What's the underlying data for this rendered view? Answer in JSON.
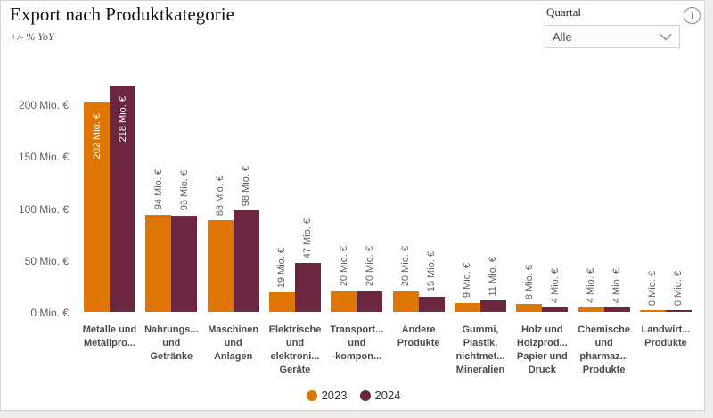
{
  "header": {
    "title": "Export nach Produktkategorie",
    "subtitle": "+/- % YoY"
  },
  "slicer": {
    "label": "Quartal",
    "value": "Alle"
  },
  "icons": {
    "info": "i",
    "chevron_down": "chevron-down-icon"
  },
  "colors": {
    "series_2023": "#de7605",
    "series_2024": "#6c2642",
    "axis_text": "#605e5c",
    "category_text": "#4a4a4a",
    "inside_label": "#ffffff"
  },
  "legend": {
    "items": [
      {
        "label": "2023"
      },
      {
        "label": "2024"
      }
    ]
  },
  "chart_data": {
    "type": "bar",
    "title": "Export nach Produktkategorie",
    "subtitle": "+/- % YoY",
    "categories": [
      [
        "Metalle und",
        "Metallpro..."
      ],
      [
        "Nahrungs...",
        "und",
        "Getränke"
      ],
      [
        "Maschinen",
        "und",
        "Anlagen"
      ],
      [
        "Elektrische",
        "und",
        "elektroni...",
        "Geräte"
      ],
      [
        "Transport...",
        "und",
        "-kompon..."
      ],
      [
        "Andere",
        "Produkte"
      ],
      [
        "Gummi,",
        "Plastik,",
        "nichtmet...",
        "Mineralien"
      ],
      [
        "Holz und",
        "Holzprod...",
        "Papier und",
        "Druck"
      ],
      [
        "Chemische",
        "und",
        "pharmaz...",
        "Produkte"
      ],
      [
        "Landwirt...",
        "Produkte"
      ]
    ],
    "series": [
      {
        "name": "2023",
        "color": "#de7605",
        "values": [
          202,
          94,
          88,
          19,
          20,
          20,
          9,
          8,
          4,
          0
        ]
      },
      {
        "name": "2024",
        "color": "#6c2642",
        "values": [
          218,
          93,
          98,
          47,
          20,
          15,
          11,
          4,
          4,
          0
        ]
      }
    ],
    "value_suffix": " Mio. €",
    "yticks": [
      0,
      50,
      100,
      150,
      200
    ],
    "ytick_suffix": " Mio. €",
    "ylim": [
      0,
      200
    ],
    "grid": false,
    "legend_position": "bottom"
  }
}
